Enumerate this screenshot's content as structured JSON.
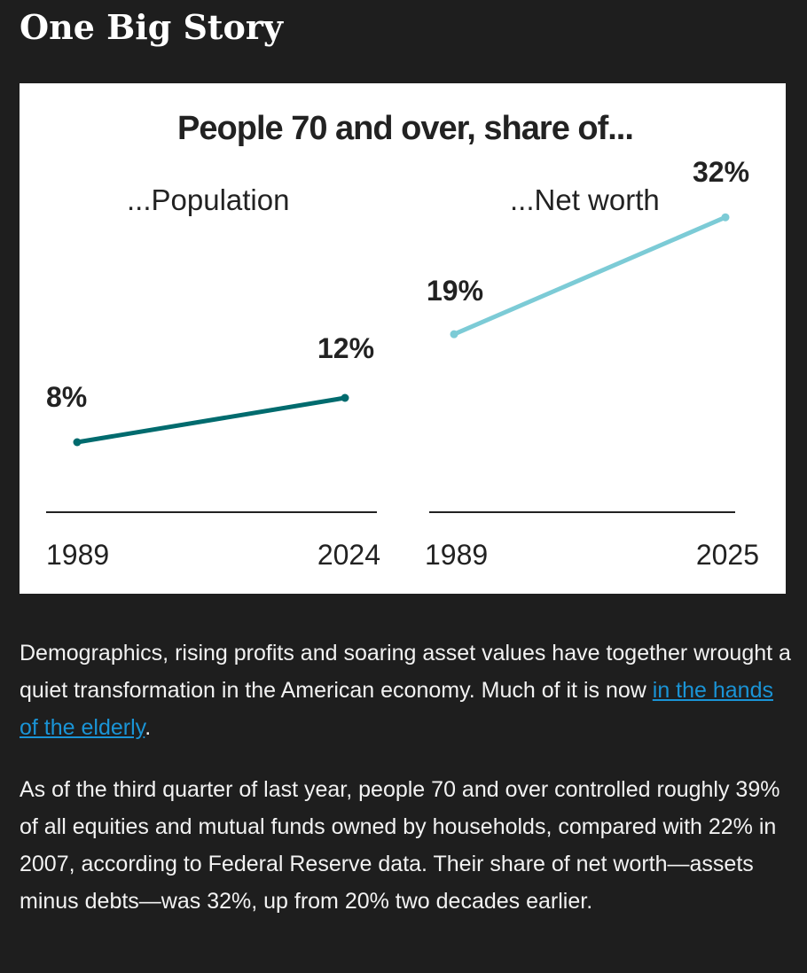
{
  "header": {
    "title": "One Big Story"
  },
  "chart_data": {
    "type": "line",
    "title": "People 70 and over, share of...",
    "panels": [
      {
        "name": "...Population",
        "x": [
          "1989",
          "2024"
        ],
        "values": [
          8,
          12
        ],
        "labels": [
          "8%",
          "12%"
        ],
        "color": "#006b6e"
      },
      {
        "name": "...Net worth",
        "x": [
          "1989",
          "2025"
        ],
        "values": [
          19,
          32
        ],
        "labels": [
          "19%",
          "32%"
        ],
        "color": "#7ccbd6"
      }
    ],
    "ylabel": "",
    "xlabel": "",
    "grid": false
  },
  "article": {
    "p1_before": "Demographics, rising profits and soaring asset values have together wrought a quiet transformation in the American economy. Much of it is now ",
    "p1_link": "in the hands of the elderly",
    "p1_after": ".",
    "p2": "As of the third quarter of last year, people 70 and over controlled roughly 39% of all equities and mutual funds owned by households, compared with 22% in 2007, according to Federal Reserve data. Their share of net worth—assets minus debts—was 32%, up from 20% two decades earlier."
  }
}
